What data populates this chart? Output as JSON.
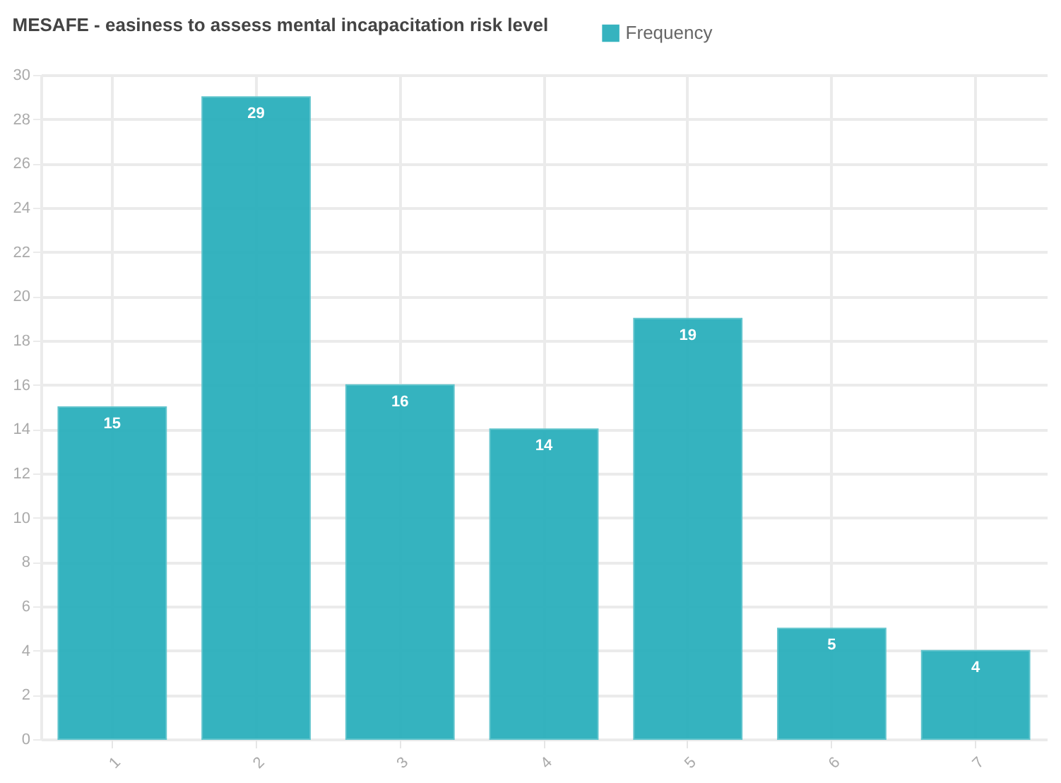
{
  "chart_data": {
    "type": "bar",
    "title": "MESAFE - easiness to assess mental incapacitation risk level",
    "categories": [
      "1",
      "2",
      "3",
      "4",
      "5",
      "6",
      "7"
    ],
    "series": [
      {
        "name": "Frequency",
        "color": "#2fb1bd",
        "values": [
          15,
          29,
          16,
          14,
          19,
          5,
          4
        ]
      }
    ],
    "ylim": [
      0,
      30
    ],
    "yticks": [
      0,
      2,
      4,
      6,
      8,
      10,
      12,
      14,
      16,
      18,
      20,
      22,
      24,
      26,
      28,
      30
    ],
    "grid": true,
    "legend": "top",
    "data_labels": true
  }
}
